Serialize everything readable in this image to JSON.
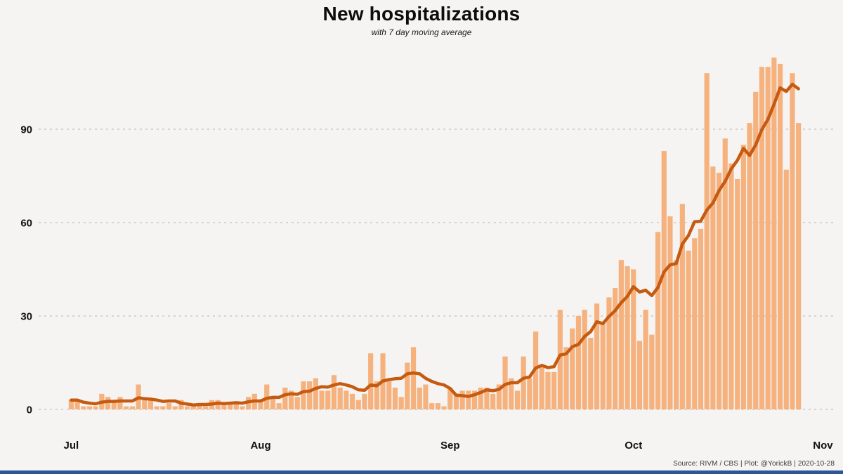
{
  "title": "New hospitalizations",
  "subtitle": "with 7 day moving average",
  "source_note": "Source: RIVM / CBS | Plot: @YorickB |  2020-10-28",
  "colors": {
    "background": "#f5f4f2",
    "bar": "#F5B27E",
    "line": "#C55A11",
    "grid": "#c9c9c9",
    "accent_strip": "#2E5596"
  },
  "chart_data": {
    "type": "bar",
    "title": "New hospitalizations",
    "subtitle": "with 7 day moving average",
    "x_start_date": "2020-07-01",
    "x_end_date": "2020-10-28",
    "ylim": [
      0,
      115
    ],
    "grid": "dashed horizontal",
    "y_ticks": [
      0,
      30,
      60,
      90
    ],
    "month_labels": [
      {
        "label": "Jul",
        "day_index": 0
      },
      {
        "label": "Aug",
        "day_index": 31
      },
      {
        "label": "Sep",
        "day_index": 62
      },
      {
        "label": "Oct",
        "day_index": 92
      },
      {
        "label": "Nov",
        "day_index": 123
      }
    ],
    "series": [
      {
        "name": "daily new hospitalizations",
        "style": "bar",
        "values": [
          3,
          3,
          1,
          1,
          1,
          5,
          4,
          3,
          4,
          1,
          1,
          8,
          3,
          3,
          1,
          1,
          2,
          1,
          3,
          1,
          1,
          2,
          1,
          3,
          3,
          2,
          2,
          2,
          1,
          4,
          5,
          3,
          8,
          4,
          2,
          7,
          6,
          4,
          9,
          9,
          10,
          6,
          6,
          11,
          7,
          6,
          5,
          3,
          5,
          18,
          9,
          18,
          9,
          7,
          4,
          15,
          20,
          7,
          8,
          2,
          2,
          1,
          7,
          5,
          6,
          6,
          6,
          7,
          7,
          5,
          8,
          17,
          10,
          6,
          17,
          10,
          25,
          14,
          12,
          12,
          32,
          20,
          26,
          30,
          32,
          23,
          34,
          28,
          36,
          39,
          48,
          46,
          45,
          22,
          32,
          24,
          57,
          83,
          62,
          48,
          66,
          51,
          55,
          58,
          108,
          78,
          76,
          87,
          79,
          74,
          85,
          92,
          102,
          110,
          110,
          113,
          111,
          77,
          108,
          92
        ]
      },
      {
        "name": "7 day moving average",
        "style": "line",
        "derivation": "trailing 7-day mean of daily values (partial window at series start)"
      }
    ]
  }
}
